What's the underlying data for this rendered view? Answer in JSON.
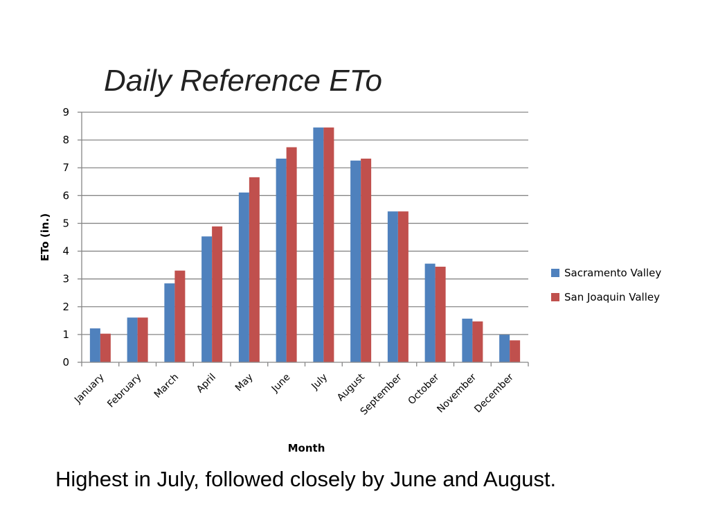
{
  "slide": {
    "title": "Daily Reference ETo",
    "caption": "Highest in July, followed closely by June and August."
  },
  "colors": {
    "series_1": "#4f81bd",
    "series_2": "#c0504d",
    "gridline": "#868686",
    "axis": "#868686"
  },
  "chart_data": {
    "type": "bar",
    "title": "Daily Reference ETo",
    "xlabel": "Month",
    "ylabel": "ETo (in.)",
    "ylim": [
      0,
      9
    ],
    "yticks": [
      0,
      1,
      2,
      3,
      4,
      5,
      6,
      7,
      8,
      9
    ],
    "grid": true,
    "legend_position": "right",
    "categories": [
      "January",
      "February",
      "March",
      "April",
      "May",
      "June",
      "July",
      "August",
      "September",
      "October",
      "November",
      "December"
    ],
    "series": [
      {
        "name": "Sacramento Valley",
        "color": "#4f81bd",
        "values": [
          1.22,
          1.61,
          2.84,
          4.53,
          6.11,
          7.33,
          8.45,
          7.26,
          5.43,
          3.55,
          1.57,
          0.99
        ]
      },
      {
        "name": "San Joaquin Valley",
        "color": "#c0504d",
        "values": [
          1.03,
          1.61,
          3.3,
          4.89,
          6.66,
          7.74,
          8.45,
          7.33,
          5.43,
          3.44,
          1.47,
          0.79
        ]
      }
    ]
  }
}
